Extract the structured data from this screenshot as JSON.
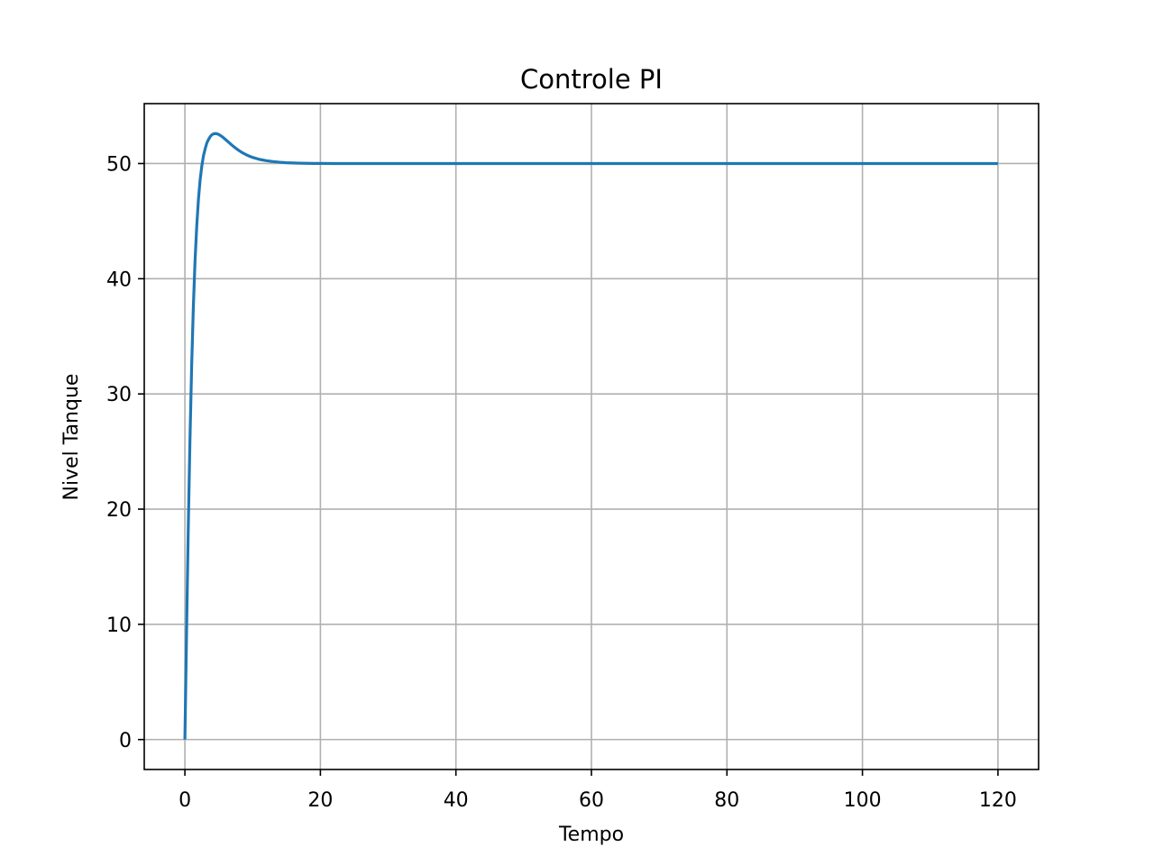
{
  "chart_data": {
    "type": "line",
    "title": "Controle PI",
    "xlabel": "Tempo",
    "ylabel": "Nivel Tanque",
    "xlim": [
      -6,
      126
    ],
    "ylim": [
      -2.6,
      55.2
    ],
    "xticks": [
      0,
      20,
      40,
      60,
      80,
      100,
      120
    ],
    "yticks": [
      0,
      10,
      20,
      30,
      40,
      50
    ],
    "grid": true,
    "series": [
      {
        "color": "#1f77b4",
        "x": [
          0,
          0.25,
          0.5,
          0.75,
          1.0,
          1.25,
          1.5,
          1.75,
          2.0,
          2.25,
          2.5,
          2.75,
          3.0,
          3.25,
          3.5,
          3.75,
          4.0,
          4.25,
          4.5,
          4.75,
          5.0,
          5.5,
          6.0,
          6.5,
          7.0,
          7.5,
          8.0,
          8.5,
          9.0,
          9.5,
          10.0,
          11.0,
          12.0,
          13.0,
          14.0,
          15.0,
          16.0,
          17.0,
          18.0,
          19.0,
          20.0,
          22.0,
          24.0,
          26.0,
          28.0,
          30.0,
          33.0,
          36.0,
          40.0,
          45.0,
          50.0,
          60.0,
          70.0,
          80.0,
          90.0,
          100.0,
          110.0,
          120.0
        ],
        "y": [
          0,
          9.5,
          18.5,
          26.1,
          32.5,
          37.6,
          41.6,
          44.6,
          46.9,
          48.6,
          49.8,
          50.7,
          51.3,
          51.8,
          52.1,
          52.35,
          52.5,
          52.58,
          52.6,
          52.58,
          52.52,
          52.33,
          52.08,
          51.82,
          51.57,
          51.33,
          51.12,
          50.93,
          50.78,
          50.64,
          50.53,
          50.36,
          50.25,
          50.17,
          50.11,
          50.07,
          50.05,
          50.03,
          50.02,
          50.01,
          50.01,
          50.0,
          50.0,
          50.0,
          50.0,
          50.0,
          50.0,
          50.0,
          50.0,
          50.0,
          50.0,
          50.0,
          50.0,
          50.0,
          50.0,
          50.0,
          50.0,
          50.0
        ]
      }
    ]
  }
}
